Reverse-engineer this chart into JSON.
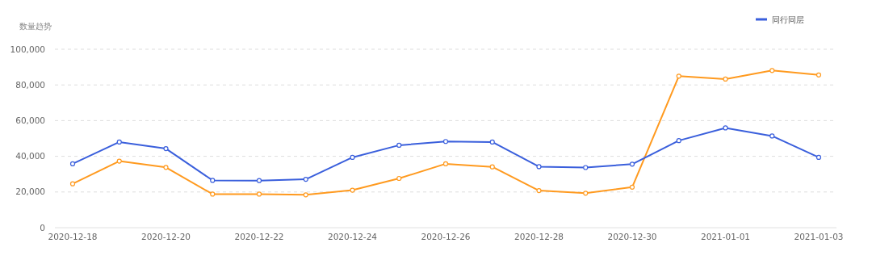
{
  "chart_data": {
    "type": "line",
    "ylabel": "数量趋势",
    "categories": [
      "2020-12-18",
      null,
      "2020-12-20",
      null,
      "2020-12-22",
      null,
      "2020-12-24",
      null,
      "2020-12-26",
      null,
      "2020-12-28",
      null,
      "2020-12-30",
      null,
      "2021-01-01",
      null,
      "2021-01-03"
    ],
    "series": [
      {
        "color": "#ff9a1f",
        "values": [
          24600,
          37300,
          33800,
          18800,
          18800,
          18400,
          21000,
          27600,
          35800,
          34100,
          20800,
          19300,
          22700,
          84900,
          83300,
          88100,
          85600
        ]
      },
      {
        "name": "同行同层",
        "color": "#3a5fdc",
        "values": [
          35800,
          48000,
          44300,
          26500,
          26400,
          27100,
          39400,
          46200,
          48300,
          48000,
          34200,
          33700,
          35600,
          48800,
          55900,
          51400,
          39400
        ]
      }
    ],
    "ylim": [
      0,
      100000
    ],
    "yticks": [
      {
        "value": 0,
        "label": "0"
      },
      {
        "value": 20000,
        "label": "20,000"
      },
      {
        "value": 40000,
        "label": "40,000"
      },
      {
        "value": 60000,
        "label": "60,000"
      },
      {
        "value": 80000,
        "label": "80,000"
      },
      {
        "value": 100000,
        "label": "100,000"
      }
    ],
    "grid": "y",
    "legend": "top right",
    "marker": "circle"
  }
}
